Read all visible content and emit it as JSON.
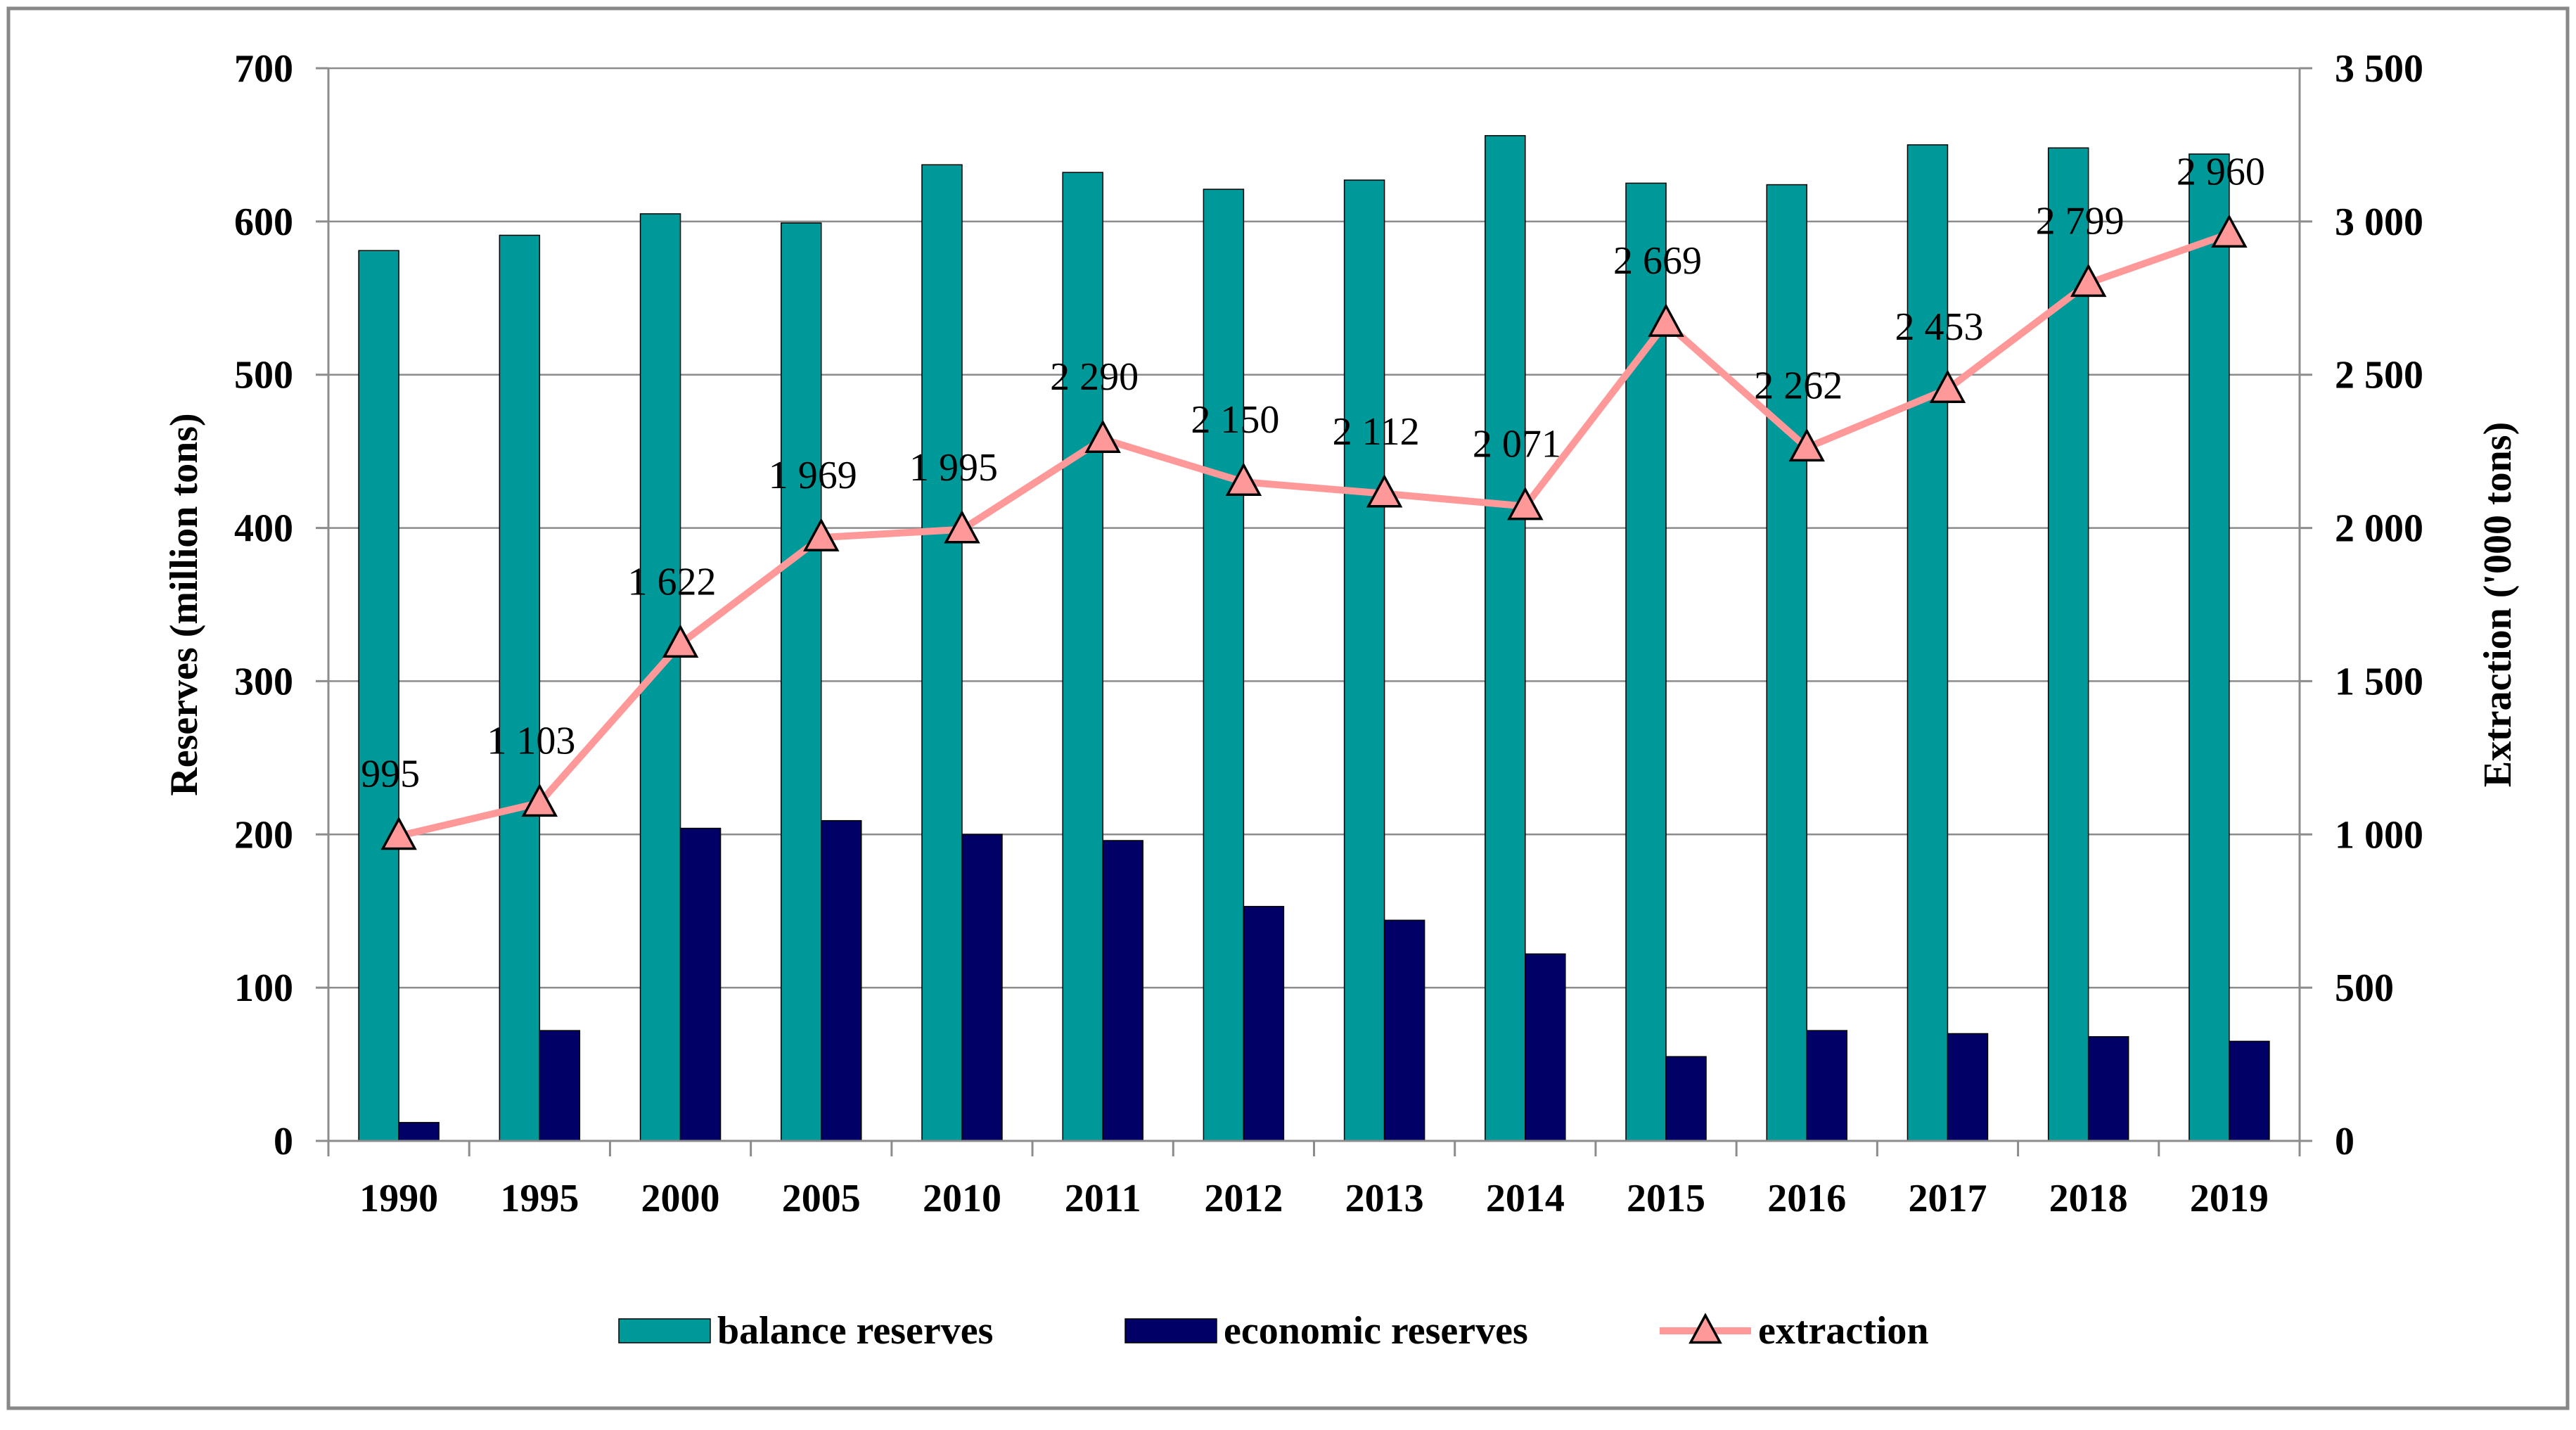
{
  "chart_data": {
    "type": "bar+line",
    "categories": [
      "1990",
      "1995",
      "2000",
      "2005",
      "2010",
      "2011",
      "2012",
      "2013",
      "2014",
      "2015",
      "2016",
      "2017",
      "2018",
      "2019"
    ],
    "series": [
      {
        "name": "balance reserves",
        "type": "bar",
        "axis": "left",
        "color": "#009999",
        "values": [
          581,
          591,
          605,
          599,
          637,
          632,
          621,
          627,
          656,
          625,
          624,
          650,
          648,
          644
        ]
      },
      {
        "name": "economic reserves",
        "type": "bar",
        "axis": "left",
        "color": "#000066",
        "values": [
          12,
          72,
          204,
          209,
          200,
          196,
          153,
          144,
          122,
          55,
          72,
          70,
          68,
          65
        ]
      },
      {
        "name": "extraction",
        "type": "line",
        "axis": "right",
        "color": "#ff9999",
        "values": [
          995,
          1103,
          1622,
          1969,
          1995,
          2290,
          2150,
          2112,
          2071,
          2669,
          2262,
          2453,
          2799,
          2960
        ],
        "labels": [
          "995",
          "1 103",
          "1 622",
          "1 969",
          "1 995",
          "2 290",
          "2 150",
          "2 112",
          "2 071",
          "2 669",
          "2 262",
          "2 453",
          "2 799",
          "2 960"
        ]
      }
    ],
    "left_axis": {
      "title": "Reserves (million  tons)",
      "min": 0,
      "max": 700,
      "ticks": [
        "0",
        "100",
        "200",
        "300",
        "400",
        "500",
        "600",
        "700"
      ]
    },
    "right_axis": {
      "title": "Extraction ('000 tons)",
      "min": 0,
      "max": 3500,
      "ticks": [
        "0",
        "500",
        "1 000",
        "1 500",
        "2 000",
        "2 500",
        "3 000",
        "3 500"
      ]
    },
    "grid": true,
    "legend_position": "bottom"
  }
}
